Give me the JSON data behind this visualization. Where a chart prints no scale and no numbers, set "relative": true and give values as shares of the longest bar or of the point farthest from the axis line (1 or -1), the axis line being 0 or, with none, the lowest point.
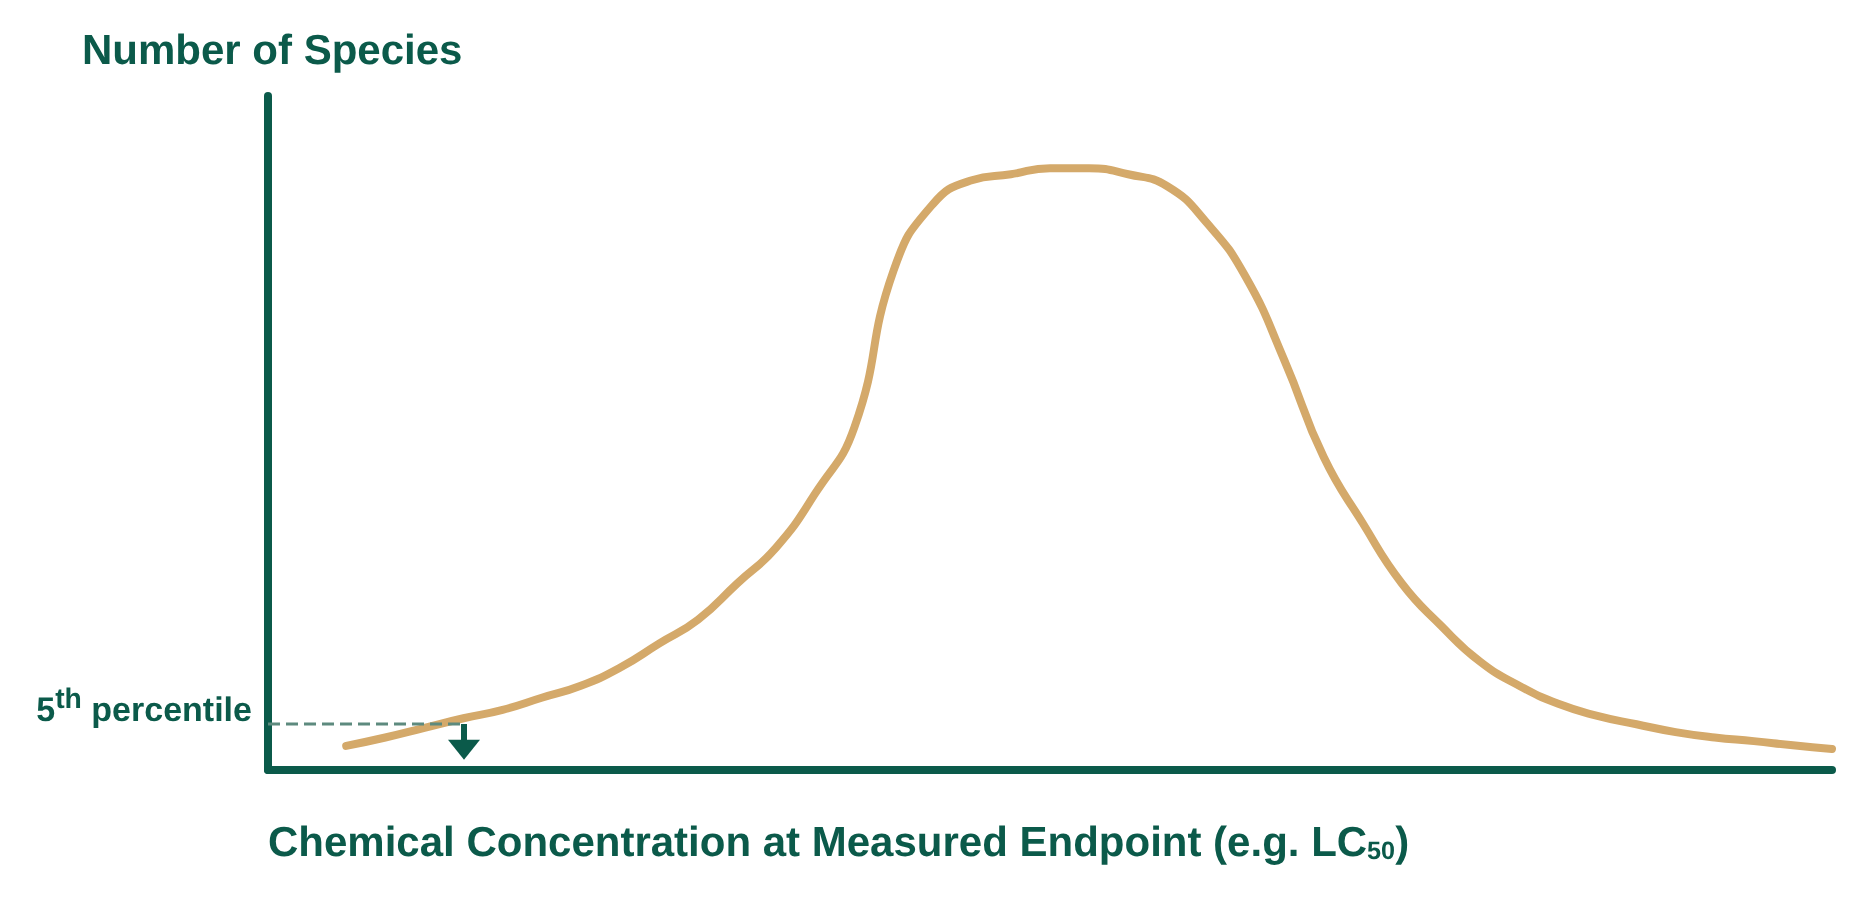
{
  "chart_data": {
    "type": "line",
    "relative": true,
    "ylabel": "Number of Species",
    "xlabel": "Chemical Concentration at Measured Endpoint (e.g. LC$_{50}$)",
    "categories": [
      null,
      null,
      null,
      null,
      null,
      null,
      null,
      null,
      null,
      null,
      null,
      null,
      null,
      null,
      null,
      null,
      null,
      null,
      null,
      null,
      null,
      null,
      null,
      null,
      null,
      null,
      null,
      null,
      null,
      null,
      null,
      null,
      null,
      null,
      null,
      null,
      null,
      null,
      null,
      null,
      null
    ],
    "series": [
      {
        "color": "#d4a96a",
        "values": [
          null,
          null,
          0.04,
          0.054,
          0.07,
          0.086,
          0.1,
          0.12,
          0.14,
          0.17,
          0.21,
          0.25,
          0.31,
          0.37,
          0.46,
          0.57,
          0.83,
          0.94,
          0.98,
          0.99,
          1,
          1,
          0.99,
          0.97,
          0.91,
          0.82,
          0.68,
          0.52,
          0.41,
          0.31,
          0.24,
          0.18,
          0.14,
          0.11,
          0.09,
          0.076,
          0.063,
          0.054,
          0.048,
          0.041,
          0.035
        ]
      }
    ],
    "ref_lines": [
      {
        "axis": "y",
        "value": 0.076,
        "label": "5$^{th}$ percentile",
        "color": "#5d8a7e",
        "line_style": "dashed"
      }
    ],
    "grid": false,
    "marker": "none",
    "line_style": "solid"
  }
}
